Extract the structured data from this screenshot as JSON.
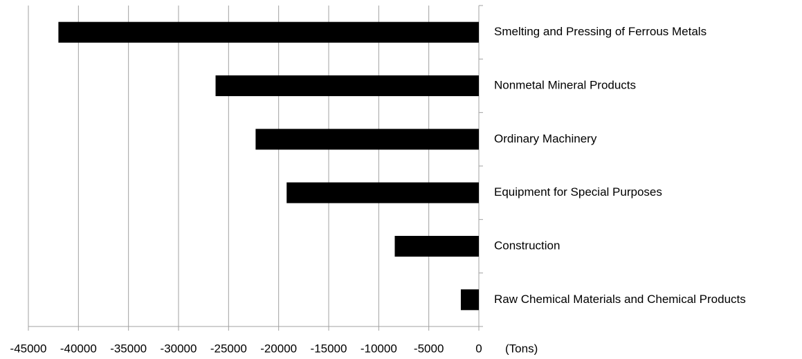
{
  "chart_data": {
    "type": "bar",
    "orientation": "horizontal",
    "categories": [
      "Smelting and Pressing of Ferrous Metals",
      "Nonmetal Mineral Products",
      "Ordinary Machinery",
      "Equipment for Special Purposes",
      "Construction",
      "Raw Chemical Materials and Chemical Products"
    ],
    "values": [
      -42000,
      -26300,
      -22300,
      -19200,
      -8400,
      -1800
    ],
    "color": "#000000",
    "x_label": "(Tons)",
    "xlim": [
      -45000,
      0
    ],
    "xticks": [
      -45000,
      -40000,
      -35000,
      -30000,
      -25000,
      -20000,
      -15000,
      -10000,
      -5000,
      0
    ],
    "grid": true
  }
}
